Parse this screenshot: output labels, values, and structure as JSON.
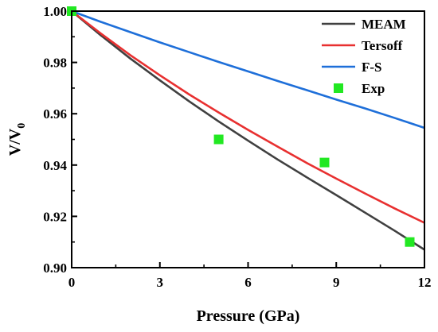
{
  "chart_data": {
    "type": "line",
    "xlabel": "Pressure (GPa)",
    "ylabel": "V/V",
    "ylabel_subscript": "0",
    "xlim": [
      0,
      12
    ],
    "ylim": [
      0.9,
      1.0
    ],
    "xticks": [
      "0",
      "3",
      "6",
      "9",
      "12"
    ],
    "yticks": [
      "0.90",
      "0.92",
      "0.94",
      "0.96",
      "0.98",
      "1.00"
    ],
    "grid": false,
    "legend_position": "top-right",
    "series": [
      {
        "name": "MEAM",
        "kind": "line",
        "color": "#404040",
        "x": [
          0,
          1,
          2,
          3,
          4,
          5,
          6,
          7,
          8,
          9,
          10,
          11,
          12
        ],
        "y": [
          1.0,
          0.9905,
          0.9815,
          0.973,
          0.9648,
          0.957,
          0.9495,
          0.9422,
          0.9352,
          0.9283,
          0.9213,
          0.9143,
          0.907
        ]
      },
      {
        "name": "Tersoff",
        "kind": "line",
        "color": "#e83030",
        "x": [
          0,
          1,
          2,
          3,
          4,
          5,
          6,
          7,
          8,
          9,
          10,
          11,
          12
        ],
        "y": [
          1.0,
          0.9912,
          0.9828,
          0.975,
          0.9675,
          0.9605,
          0.9537,
          0.9472,
          0.9408,
          0.9347,
          0.9288,
          0.923,
          0.9175
        ]
      },
      {
        "name": "F-S",
        "kind": "line",
        "color": "#1e6fd9",
        "x": [
          0,
          1,
          2,
          3,
          4,
          5,
          6,
          7,
          8,
          9,
          10,
          11,
          12
        ],
        "y": [
          1.0,
          0.9958,
          0.9918,
          0.9878,
          0.984,
          0.9802,
          0.9765,
          0.9728,
          0.9692,
          0.9655,
          0.962,
          0.9583,
          0.9545
        ]
      },
      {
        "name": "Exp",
        "kind": "scatter",
        "color": "#22e822",
        "x": [
          0,
          5.0,
          8.6,
          11.5
        ],
        "y": [
          1.0,
          0.95,
          0.941,
          0.91
        ]
      }
    ]
  }
}
